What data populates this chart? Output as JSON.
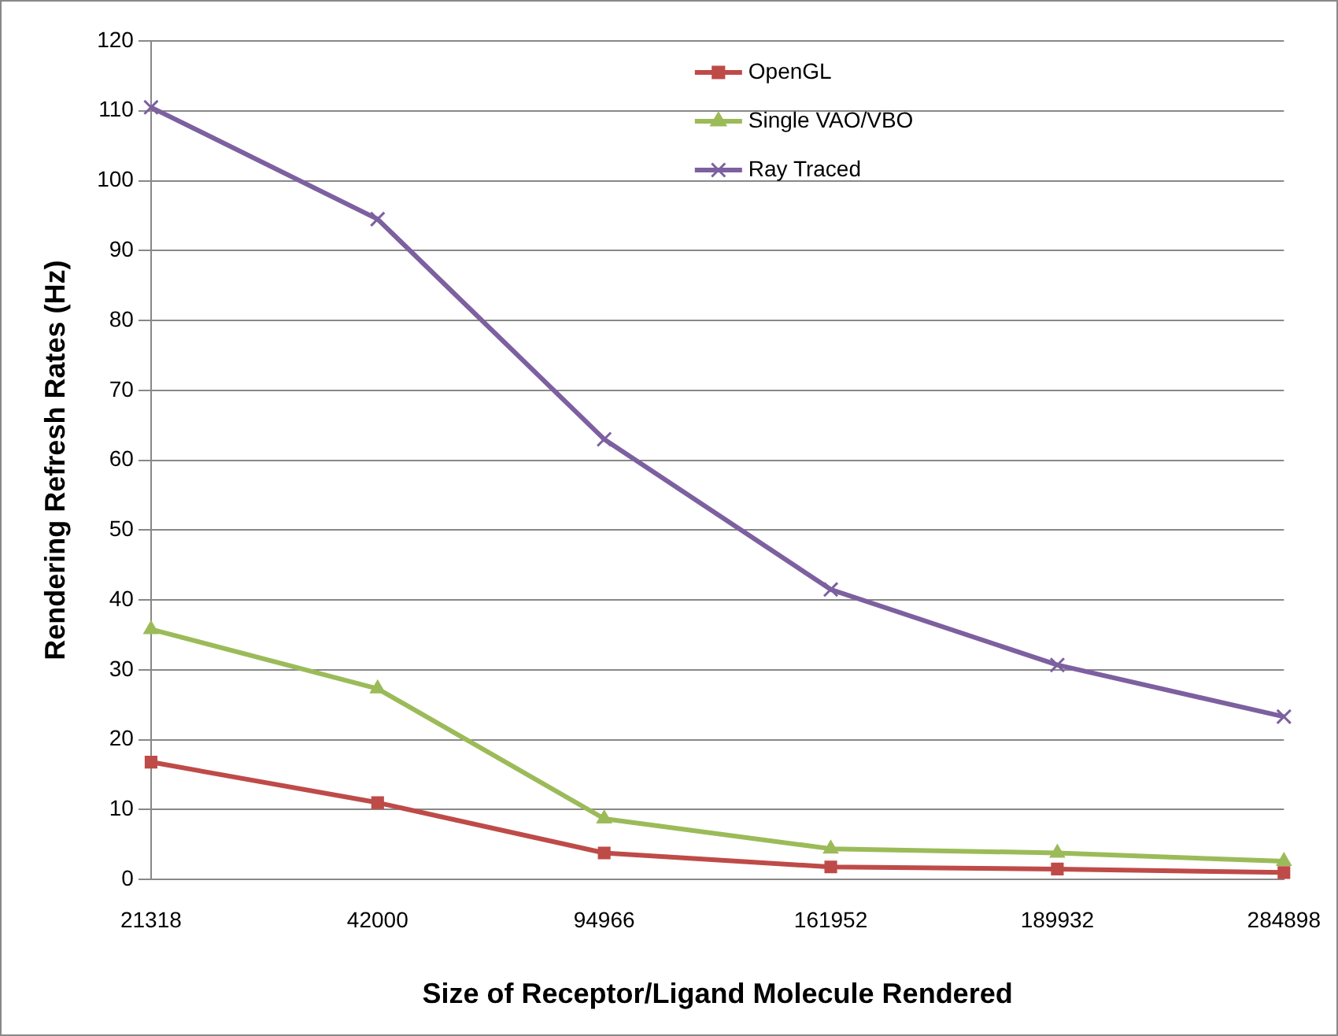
{
  "chart_data": {
    "type": "line",
    "xlabel": "Size of Receptor/Ligand Molecule Rendered",
    "ylabel": "Rendering Refresh Rates (Hz)",
    "categories": [
      "21318",
      "42000",
      "94966",
      "161952",
      "189932",
      "284898"
    ],
    "series": [
      {
        "name": "OpenGL",
        "color": "#be4b48",
        "marker": "square",
        "values": [
          16.8,
          11,
          3.8,
          1.8,
          1.5,
          1
        ]
      },
      {
        "name": "Single VAO/VBO",
        "color": "#9bbb59",
        "marker": "triangle",
        "values": [
          35.8,
          27.3,
          8.7,
          4.4,
          3.8,
          2.6
        ]
      },
      {
        "name": "Ray Traced",
        "color": "#7d60a0",
        "marker": "cross",
        "values": [
          110.5,
          94.5,
          63,
          41.5,
          30.7,
          23.3
        ]
      }
    ],
    "ylim": [
      0,
      120
    ],
    "yticks": [
      0,
      10,
      20,
      30,
      40,
      50,
      60,
      70,
      80,
      90,
      100,
      110,
      120
    ],
    "grid": "y",
    "legend": "top right"
  }
}
